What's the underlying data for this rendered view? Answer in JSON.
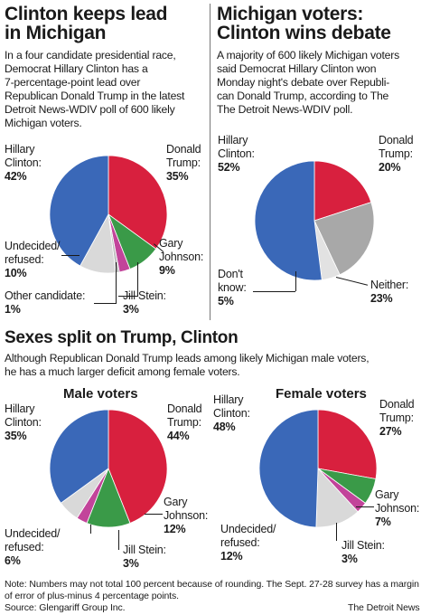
{
  "panel1": {
    "title_line1": "Clinton keeps lead",
    "title_line2": "in Michigan",
    "body": [
      "In a four candidate presidential race,",
      "Democrat Hillary Clinton has a",
      "7-percentage-point lead over",
      "Republican Donald Trump in the latest",
      "Detroit News-WDIV poll of 600 likely",
      "Michigan voters."
    ]
  },
  "panel2": {
    "title_line1": "Michigan voters:",
    "title_line2": "Clinton wins debate",
    "body": [
      "A majority of 600 likely Michigan voters",
      "said Democrat Hillary Clinton won",
      "Monday night's debate over Republi-",
      "can Donald Trump, according to The",
      "The Detroit News-WDIV poll."
    ]
  },
  "panel3": {
    "title": "Sexes split on Trump, Clinton",
    "body": [
      "Although Republican Donald Trump leads among likely Michigan male voters,",
      "he has a much larger deficit among female voters."
    ],
    "male_title": "Male voters",
    "female_title": "Female voters"
  },
  "colors": {
    "clinton": "#3a68b8",
    "trump": "#d8203e",
    "johnson": "#3a9a48",
    "stein": "#c2449a",
    "undecided": "#d9d9d9",
    "other": "#bfbfbf",
    "neither": "#a8a8a8",
    "dontknow": "#e2e2e2"
  },
  "chart_data": [
    {
      "type": "pie",
      "title": "Clinton keeps lead in Michigan",
      "slices": [
        {
          "name": "Hillary Clinton",
          "value": 42,
          "color_key": "clinton",
          "label_name": "Hillary\nClinton:",
          "label_value": "42%"
        },
        {
          "name": "Donald Trump",
          "value": 35,
          "color_key": "trump",
          "label_name": "Donald\nTrump:",
          "label_value": "35%"
        },
        {
          "name": "Gary Johnson",
          "value": 9,
          "color_key": "johnson",
          "label_name": "Gary\nJohnson:",
          "label_value": "9%"
        },
        {
          "name": "Jill Stein",
          "value": 3,
          "color_key": "stein",
          "label_name": "Jill Stein:",
          "label_value": "3%"
        },
        {
          "name": "Other candidate",
          "value": 1,
          "color_key": "other",
          "label_name": "Other candidate:",
          "label_value": "1%"
        },
        {
          "name": "Undecided/refused",
          "value": 10,
          "color_key": "undecided",
          "label_name": "Undecided/\nrefused:",
          "label_value": "10%"
        }
      ]
    },
    {
      "type": "pie",
      "title": "Michigan voters: Clinton wins debate",
      "slices": [
        {
          "name": "Hillary Clinton",
          "value": 52,
          "color_key": "clinton",
          "label_name": "Hillary\nClinton:",
          "label_value": "52%"
        },
        {
          "name": "Donald Trump",
          "value": 20,
          "color_key": "trump",
          "label_name": "Donald\nTrump:",
          "label_value": "20%"
        },
        {
          "name": "Neither",
          "value": 23,
          "color_key": "neither",
          "label_name": "Neither:",
          "label_value": "23%"
        },
        {
          "name": "Don't know",
          "value": 5,
          "color_key": "dontknow",
          "label_name": "Don't\nknow:",
          "label_value": "5%"
        }
      ]
    },
    {
      "type": "pie",
      "title": "Male voters",
      "slices": [
        {
          "name": "Hillary Clinton",
          "value": 35,
          "color_key": "clinton",
          "label_name": "Hillary\nClinton:",
          "label_value": "35%"
        },
        {
          "name": "Donald Trump",
          "value": 44,
          "color_key": "trump",
          "label_name": "Donald\nTrump:",
          "label_value": "44%"
        },
        {
          "name": "Gary Johnson",
          "value": 12,
          "color_key": "johnson",
          "label_name": "Gary\nJohnson:",
          "label_value": "12%"
        },
        {
          "name": "Jill Stein",
          "value": 3,
          "color_key": "stein",
          "label_name": "Jill Stein:",
          "label_value": "3%"
        },
        {
          "name": "Undecided/refused",
          "value": 6,
          "color_key": "undecided",
          "label_name": "Undecided/\nrefused:",
          "label_value": "6%"
        }
      ]
    },
    {
      "type": "pie",
      "title": "Female voters",
      "slices": [
        {
          "name": "Hillary Clinton",
          "value": 48,
          "color_key": "clinton",
          "label_name": "Hillary\nClinton:",
          "label_value": "48%"
        },
        {
          "name": "Donald Trump",
          "value": 27,
          "color_key": "trump",
          "label_name": "Donald\nTrump:",
          "label_value": "27%"
        },
        {
          "name": "Gary Johnson",
          "value": 7,
          "color_key": "johnson",
          "label_name": "Gary\nJohnson:",
          "label_value": "7%"
        },
        {
          "name": "Jill Stein",
          "value": 3,
          "color_key": "stein",
          "label_name": "Jill Stein:",
          "label_value": "3%"
        },
        {
          "name": "Undecided/refused",
          "value": 12,
          "color_key": "undecided",
          "label_name": "Undecided/\nrefused:",
          "label_value": "12%"
        }
      ]
    }
  ],
  "footer": {
    "note_line1": "Note: Numbers may not total 100 percent because of rounding. The Sept. 27-28 survey has a margin",
    "note_line2": "of error of plus-minus 4 percentage points.",
    "source": "Source: Glengariff Group Inc.",
    "credit": "The Detroit News"
  }
}
